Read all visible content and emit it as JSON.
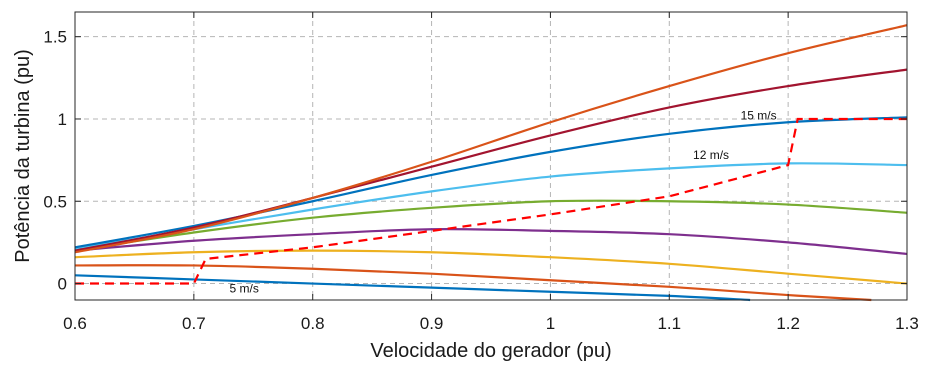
{
  "chart_data": {
    "type": "line",
    "title": "",
    "xlabel": "Velocidade do gerador (pu)",
    "ylabel": "Potência da turbina (pu)",
    "xlim": [
      0.6,
      1.3
    ],
    "ylim": [
      -0.1,
      1.65
    ],
    "xticks": [
      0.6,
      0.7,
      0.8,
      0.9,
      1,
      1.1,
      1.2,
      1.3
    ],
    "xtick_labels": [
      "0.6",
      "0.7",
      "0.8",
      "0.9",
      "1",
      "1.1",
      "1.2",
      "1.3"
    ],
    "yticks": [
      0,
      0.5,
      1,
      1.5
    ],
    "ytick_labels": [
      "0",
      "0.5",
      "1",
      "1.5"
    ],
    "grid": true,
    "series": [
      {
        "color": "#0072BD",
        "x": [
          0.6,
          0.7,
          0.8,
          0.9,
          1.0,
          1.1,
          1.168
        ],
        "y": [
          0.05,
          0.025,
          0.0,
          -0.025,
          -0.05,
          -0.075,
          -0.1
        ]
      },
      {
        "color": "#D95319",
        "x": [
          0.6,
          0.7,
          0.8,
          0.9,
          1.0,
          1.1,
          1.2,
          1.27
        ],
        "y": [
          0.11,
          0.11,
          0.09,
          0.06,
          0.02,
          -0.02,
          -0.07,
          -0.1
        ]
      },
      {
        "color": "#EDB120",
        "x": [
          0.6,
          0.7,
          0.8,
          0.9,
          1.0,
          1.1,
          1.2,
          1.3
        ],
        "y": [
          0.16,
          0.19,
          0.2,
          0.19,
          0.16,
          0.12,
          0.06,
          0.0
        ]
      },
      {
        "color": "#7E2F8E",
        "x": [
          0.6,
          0.7,
          0.8,
          0.9,
          1.0,
          1.1,
          1.2,
          1.3
        ],
        "y": [
          0.2,
          0.26,
          0.3,
          0.33,
          0.32,
          0.3,
          0.25,
          0.18
        ]
      },
      {
        "color": "#77AC30",
        "x": [
          0.6,
          0.7,
          0.8,
          0.9,
          1.0,
          1.1,
          1.2,
          1.3
        ],
        "y": [
          0.2,
          0.31,
          0.4,
          0.46,
          0.5,
          0.5,
          0.48,
          0.43
        ]
      },
      {
        "color": "#4DBEEE",
        "x": [
          0.6,
          0.7,
          0.8,
          0.9,
          1.0,
          1.1,
          1.2,
          1.3
        ],
        "y": [
          0.21,
          0.33,
          0.45,
          0.56,
          0.65,
          0.7,
          0.73,
          0.72
        ]
      },
      {
        "color": "#0072BD",
        "x": [
          0.6,
          0.7,
          0.8,
          0.9,
          1.0,
          1.1,
          1.2,
          1.3
        ],
        "y": [
          0.22,
          0.35,
          0.5,
          0.66,
          0.8,
          0.91,
          0.98,
          1.01
        ]
      },
      {
        "color": "#A2142F",
        "x": [
          0.6,
          0.7,
          0.8,
          0.9,
          1.0,
          1.1,
          1.2,
          1.3
        ],
        "y": [
          0.2,
          0.34,
          0.52,
          0.71,
          0.9,
          1.07,
          1.2,
          1.3
        ]
      },
      {
        "color": "#D95319",
        "x": [
          0.6,
          0.7,
          0.8,
          0.9,
          1.0,
          1.1,
          1.2,
          1.3
        ],
        "y": [
          0.19,
          0.33,
          0.52,
          0.74,
          0.98,
          1.2,
          1.4,
          1.57
        ]
      },
      {
        "color": "#FF0000",
        "dashed": true,
        "x": [
          0.6,
          0.7,
          0.71,
          0.8,
          0.9,
          1.0,
          1.1,
          1.2,
          1.208,
          1.3
        ],
        "y": [
          0.0,
          0.0,
          0.15,
          0.22,
          0.32,
          0.42,
          0.53,
          0.72,
          1.0,
          1.0
        ]
      }
    ],
    "annotations": [
      {
        "text": "15 m/s",
        "x": 1.16,
        "y": 1.02
      },
      {
        "text": "12 m/s",
        "x": 1.12,
        "y": 0.78
      },
      {
        "text": "5 m/s",
        "x": 0.73,
        "y": -0.03
      }
    ]
  }
}
